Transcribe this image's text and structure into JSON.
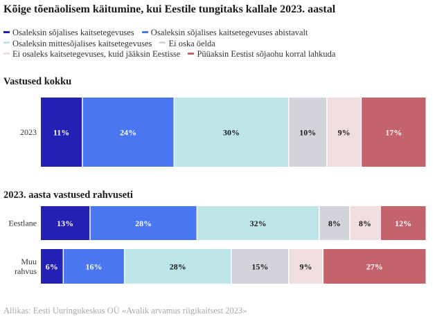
{
  "title": "Kõige tõenäolisem käitumine, kui Eestile tungitaks kallale 2023. aastal",
  "legend": [
    [
      {
        "label": "Osaleksin sõjalises kaitsetegevuses",
        "color": "#2320b4"
      },
      {
        "label": "Osaleksin sõjalises kaitsetegevuses abistavalt",
        "color": "#4a77f0"
      }
    ],
    [
      {
        "label": "Osaleksin mittesõjalises kaitsetegevuses",
        "color": "#bde6e8"
      },
      {
        "label": "Ei oska öelda",
        "color": "#d3d3db"
      }
    ],
    [
      {
        "label": "Ei osaleks kaitsetegevuses, kuid jääksin Eestisse",
        "color": "#f0dede"
      },
      {
        "label": "Püüaksin Eestist sõjaohu korral lahkuda",
        "color": "#c4636b"
      }
    ]
  ],
  "sections": [
    {
      "title": "Vastused kokku"
    },
    {
      "title": "2023. aasta vastused rahvuseti"
    }
  ],
  "source": "Allikas: Eesti Uuringukeskus OÜ «Avalik arvamus riigikaitsest 2023»",
  "chart_data": [
    {
      "type": "bar",
      "orientation": "horizontal",
      "stacked": true,
      "normalized": true,
      "unit": "%",
      "categories": [
        "2023"
      ],
      "series": [
        {
          "name": "Osaleksin sõjalises kaitsetegevuses",
          "values": [
            11
          ],
          "color": "#2320b4"
        },
        {
          "name": "Osaleksin sõjalises kaitsetegevuses abistavalt",
          "values": [
            24
          ],
          "color": "#4a77f0"
        },
        {
          "name": "Osaleksin mittesõjalises kaitsetegevuses",
          "values": [
            30
          ],
          "color": "#bde6e8"
        },
        {
          "name": "Ei oska öelda",
          "values": [
            10
          ],
          "color": "#d3d3db"
        },
        {
          "name": "Ei osaleks kaitsetegevuses, kuid jääksin Eestisse",
          "values": [
            9
          ],
          "color": "#f0dede"
        },
        {
          "name": "Püüaksin Eestist sõjaohu korral lahkuda",
          "values": [
            17
          ],
          "color": "#c4636b"
        }
      ]
    },
    {
      "type": "bar",
      "orientation": "horizontal",
      "stacked": true,
      "normalized": true,
      "unit": "%",
      "categories": [
        "Eestlane",
        "Muu rahvus"
      ],
      "series": [
        {
          "name": "Osaleksin sõjalises kaitsetegevuses",
          "values": [
            13,
            6
          ],
          "color": "#2320b4"
        },
        {
          "name": "Osaleksin sõjalises kaitsetegevuses abistavalt",
          "values": [
            28,
            16
          ],
          "color": "#4a77f0"
        },
        {
          "name": "Osaleksin mittesõjalises kaitsetegevuses",
          "values": [
            32,
            28
          ],
          "color": "#bde6e8"
        },
        {
          "name": "Ei oska öelda",
          "values": [
            8,
            15
          ],
          "color": "#d3d3db"
        },
        {
          "name": "Ei osaleks kaitsetegevuses, kuid jääksin Eestisse",
          "values": [
            8,
            9
          ],
          "color": "#f0dede"
        },
        {
          "name": "Püüaksin Eestist sõjaohu korral lahkuda",
          "values": [
            12,
            27
          ],
          "color": "#c4636b"
        }
      ]
    }
  ]
}
